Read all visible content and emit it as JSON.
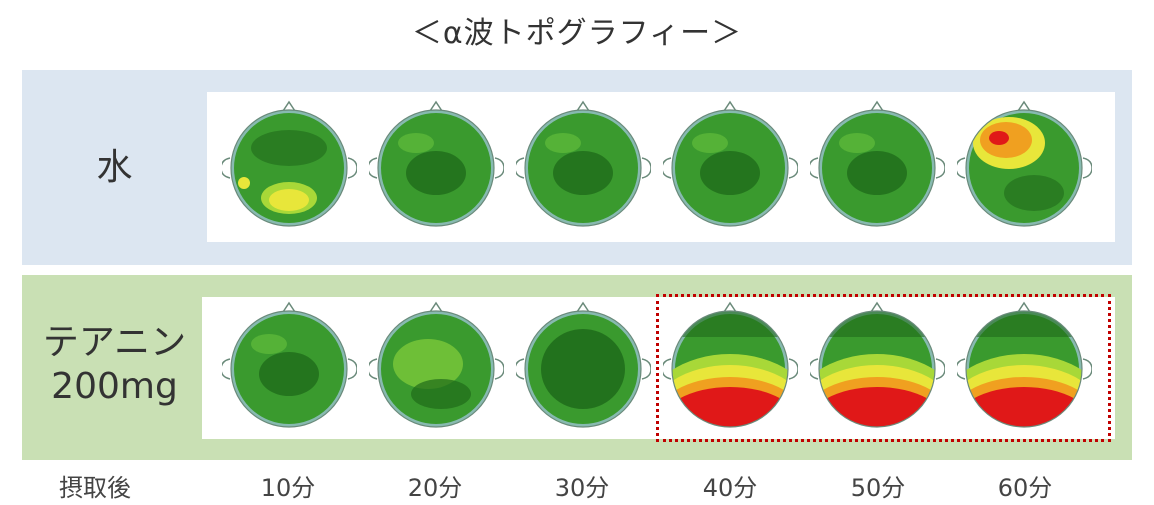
{
  "title": "＜α波トポグラフィー＞",
  "rows": [
    {
      "label": "水",
      "label_line2": "",
      "maps": [
        "green-yellow-posterior",
        "green",
        "green",
        "green",
        "green",
        "green-orange-frontal"
      ]
    },
    {
      "label": "テアニン",
      "label_line2": "200mg",
      "maps": [
        "green",
        "green-light",
        "green-dark",
        "red-posterior",
        "red-posterior",
        "red-posterior"
      ]
    }
  ],
  "time_axis": {
    "header": "摂取後",
    "labels": [
      "10分",
      "20分",
      "30分",
      "40分",
      "50分",
      "60分"
    ]
  },
  "colors": {
    "water_band": "#dce6f1",
    "theanine_band": "#c9e0b4",
    "highlight_border": "#c00000",
    "green_base": "#3a9a2e",
    "green_dark": "#1f6b1a",
    "yellow": "#e8e63a",
    "orange": "#f0a020",
    "red": "#e01818",
    "blue_edge": "#a8c8e8"
  }
}
